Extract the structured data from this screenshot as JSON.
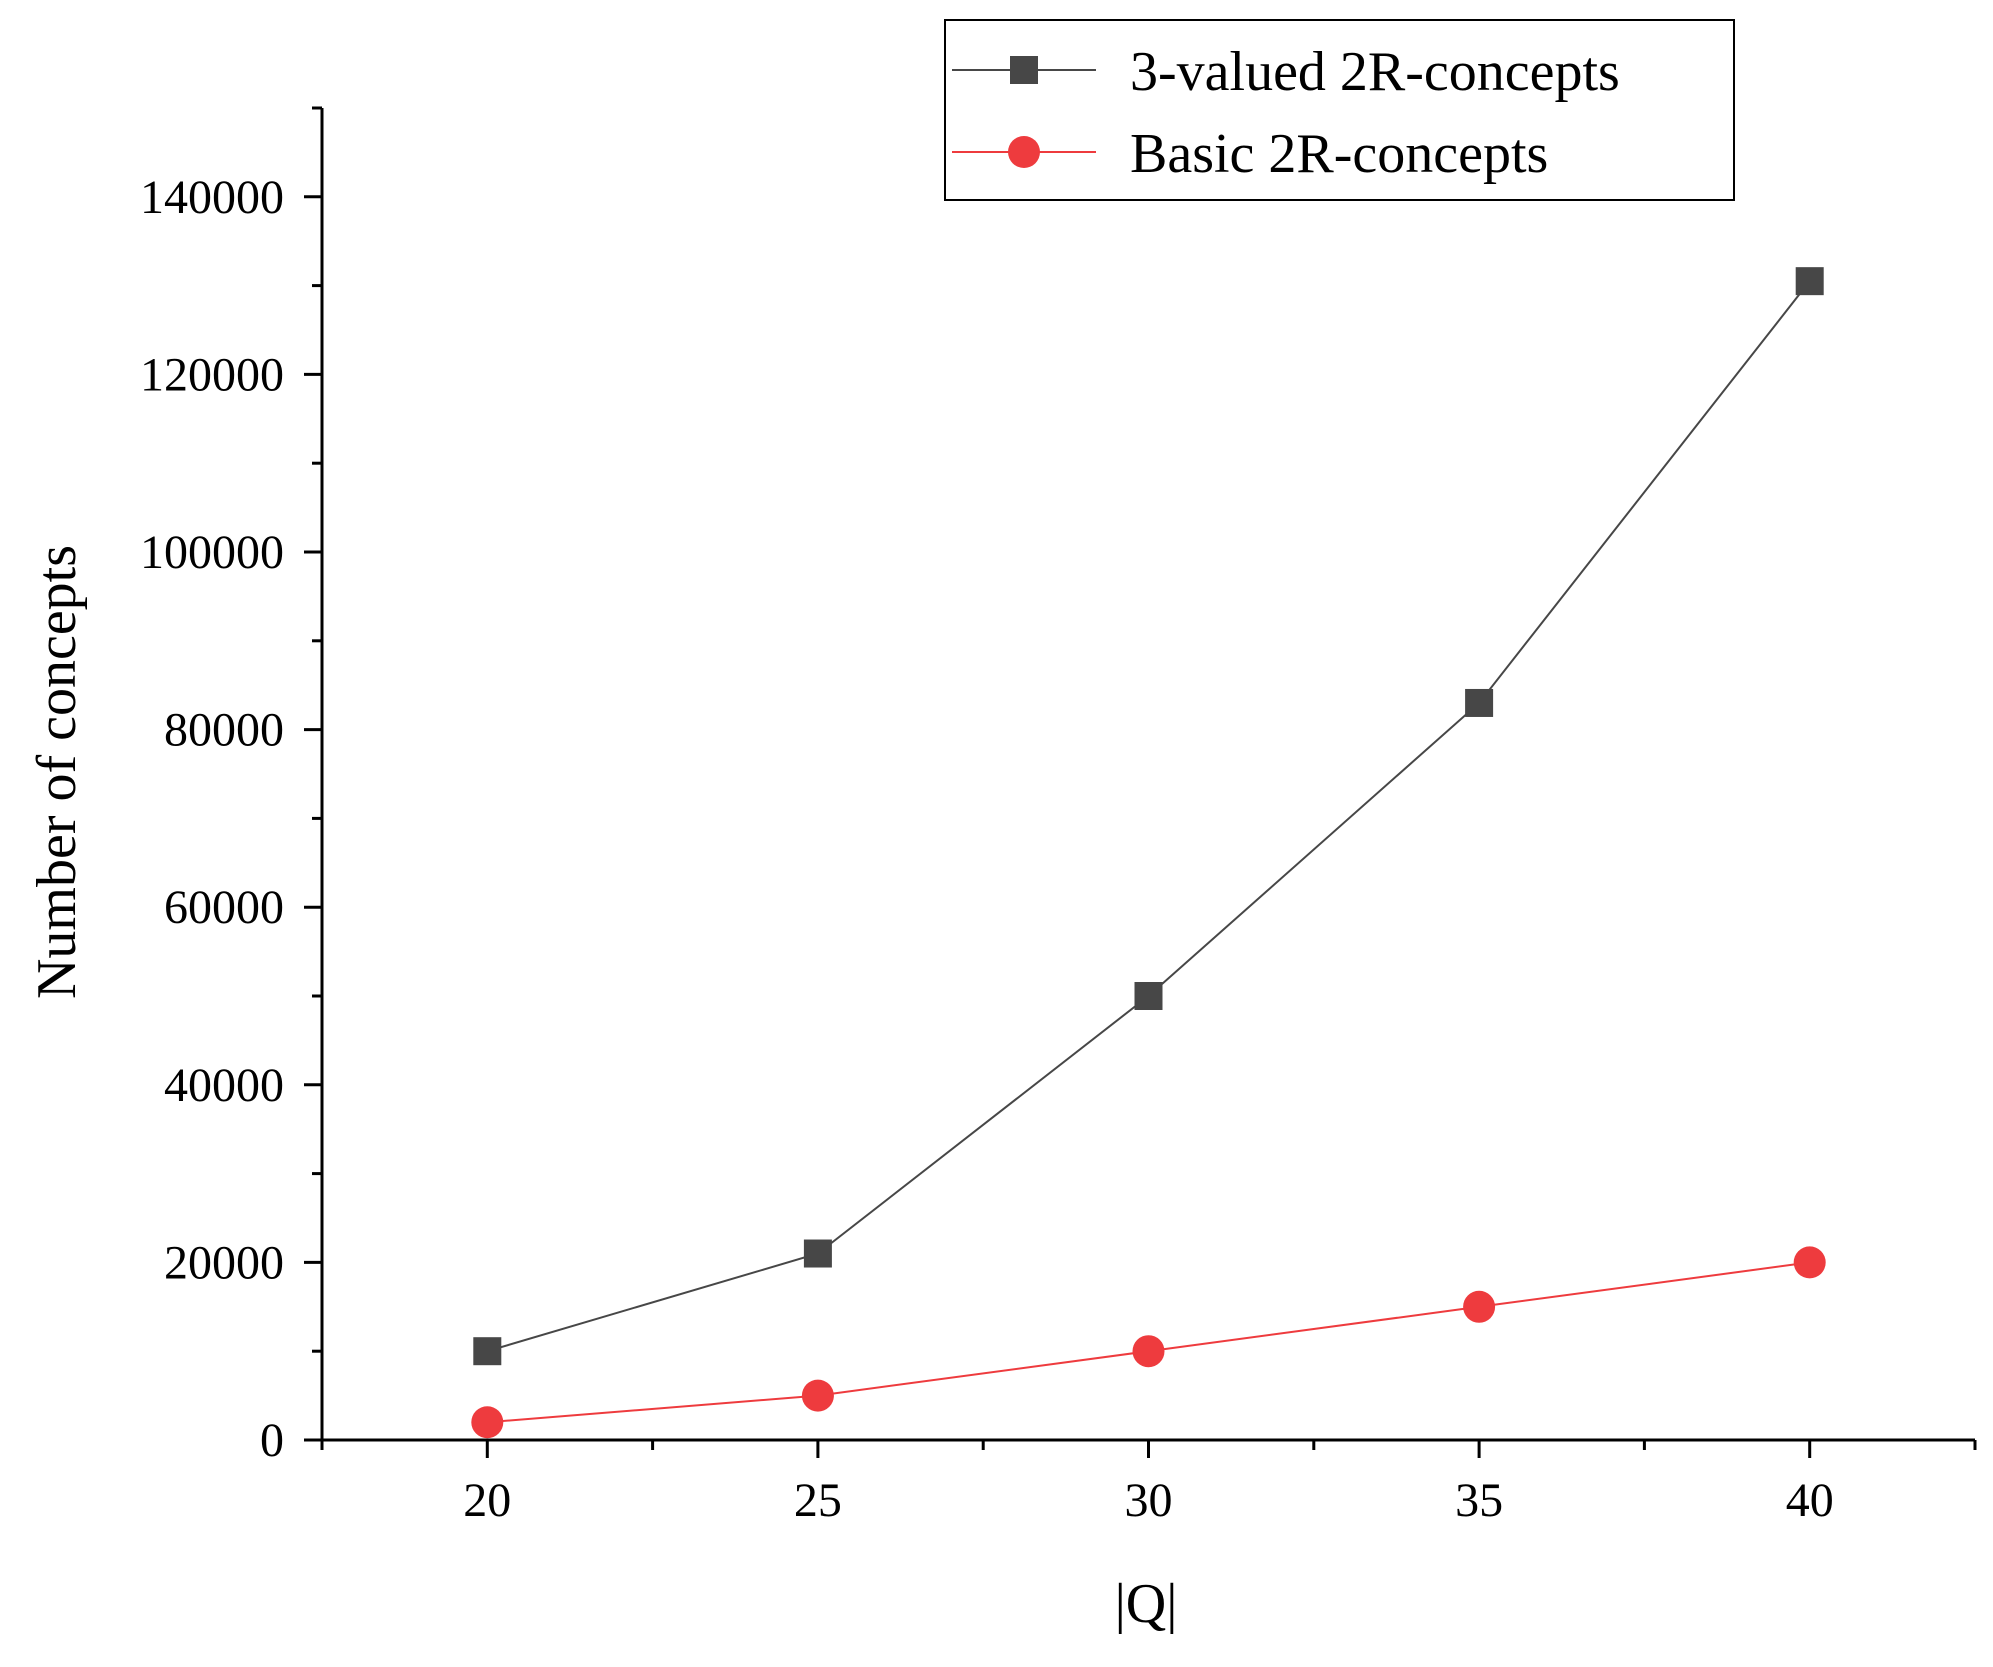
{
  "chart_data": {
    "type": "line",
    "title": "",
    "xlabel": "|Q|",
    "ylabel": "Number of concepts",
    "x": [
      20,
      25,
      30,
      35,
      40
    ],
    "xlim": [
      17.5,
      42.5
    ],
    "ylim": [
      0,
      150000
    ],
    "xticks": [
      20,
      25,
      30,
      35,
      40
    ],
    "xtick_labels": [
      "20",
      "25",
      "30",
      "35",
      "40"
    ],
    "yticks": [
      0,
      20000,
      40000,
      60000,
      80000,
      100000,
      120000,
      140000
    ],
    "ytick_labels": [
      "0",
      "20000",
      "40000",
      "60000",
      "80000",
      "100000",
      "120000",
      "140000"
    ],
    "grid": false,
    "legend_position": "top-right",
    "series": [
      {
        "name": "3-valued 2R-concepts",
        "values": [
          10000,
          21000,
          50000,
          83000,
          130500
        ],
        "color": "#474747",
        "marker": "square"
      },
      {
        "name": "Basic 2R-concepts",
        "values": [
          2000,
          5000,
          10000,
          15000,
          20000
        ],
        "color": "#ee3b3e",
        "marker": "circle"
      }
    ]
  }
}
